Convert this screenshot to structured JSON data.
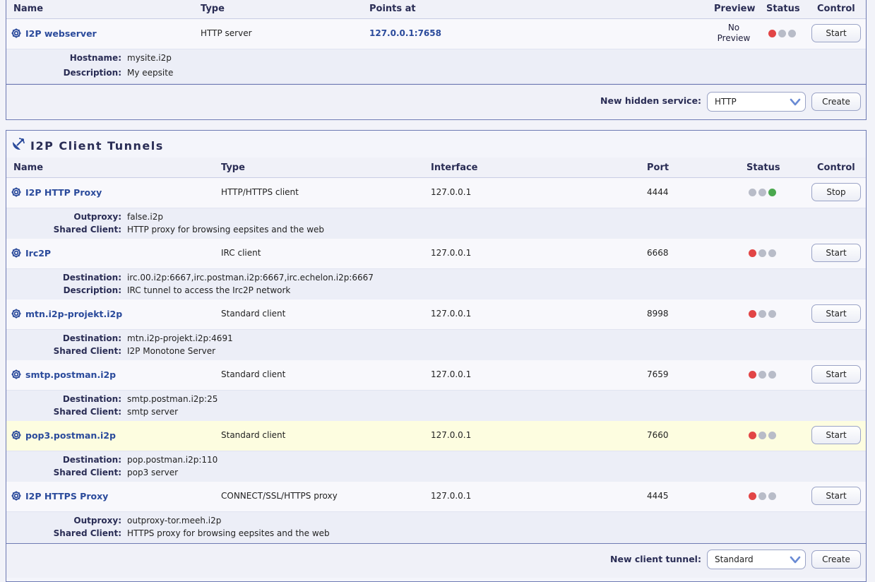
{
  "server_section": {
    "headers": {
      "name": "Name",
      "type": "Type",
      "points_at": "Points at",
      "preview": "Preview",
      "status": "Status",
      "control": "Control"
    },
    "tunnel": {
      "name": "I2P webserver",
      "type": "HTTP server",
      "points_at": "127.0.0.1:7658",
      "preview_line1": "No",
      "preview_line2": "Preview",
      "control": "Start",
      "details": [
        {
          "label": "Hostname:",
          "value": "mysite.i2p"
        },
        {
          "label": "Description:",
          "value": "My eepsite"
        }
      ]
    },
    "footer": {
      "label": "New hidden service:",
      "selected": "HTTP",
      "create": "Create"
    }
  },
  "client_section": {
    "title": "I2P Client Tunnels",
    "headers": {
      "name": "Name",
      "type": "Type",
      "interface": "Interface",
      "port": "Port",
      "status": "Status",
      "control": "Control"
    },
    "tunnels": [
      {
        "name": "I2P HTTP Proxy",
        "type": "HTTP/HTTPS client",
        "interface": "127.0.0.1",
        "port": "4444",
        "control": "Stop",
        "details": [
          {
            "label": "Outproxy:",
            "value": "false.i2p"
          },
          {
            "label": "Shared Client:",
            "value": "HTTP proxy for browsing eepsites and the web"
          }
        ]
      },
      {
        "name": "Irc2P",
        "type": "IRC client",
        "interface": "127.0.0.1",
        "port": "6668",
        "control": "Start",
        "details": [
          {
            "label": "Destination:",
            "value": "irc.00.i2p:6667,irc.postman.i2p:6667,irc.echelon.i2p:6667"
          },
          {
            "label": "Description:",
            "value": "IRC tunnel to access the Irc2P network"
          }
        ]
      },
      {
        "name": "mtn.i2p-projekt.i2p",
        "type": "Standard client",
        "interface": "127.0.0.1",
        "port": "8998",
        "control": "Start",
        "details": [
          {
            "label": "Destination:",
            "value": "mtn.i2p-projekt.i2p:4691"
          },
          {
            "label": "Shared Client:",
            "value": "I2P Monotone Server"
          }
        ]
      },
      {
        "name": "smtp.postman.i2p",
        "type": "Standard client",
        "interface": "127.0.0.1",
        "port": "7659",
        "control": "Start",
        "details": [
          {
            "label": "Destination:",
            "value": "smtp.postman.i2p:25"
          },
          {
            "label": "Shared Client:",
            "value": "smtp server"
          }
        ]
      },
      {
        "name": "pop3.postman.i2p",
        "type": "Standard client",
        "interface": "127.0.0.1",
        "port": "7660",
        "control": "Start",
        "details": [
          {
            "label": "Destination:",
            "value": "pop.postman.i2p:110"
          },
          {
            "label": "Shared Client:",
            "value": "pop3 server"
          }
        ]
      },
      {
        "name": "I2P HTTPS Proxy",
        "type": "CONNECT/SSL/HTTPS proxy",
        "interface": "127.0.0.1",
        "port": "4445",
        "control": "Start",
        "details": [
          {
            "label": "Outproxy:",
            "value": "outproxy-tor.meeh.i2p"
          },
          {
            "label": "Shared Client:",
            "value": "HTTPS proxy for browsing eepsites and the web"
          }
        ]
      }
    ],
    "footer": {
      "label": "New client tunnel:",
      "selected": "Standard",
      "create": "Create"
    }
  },
  "colors": {
    "accent": "#2a4a9b",
    "status_stopped": "#e24546",
    "status_running": "#4aa84e",
    "status_idle": "#b8bcc8",
    "highlight_row": "#fdfde0"
  },
  "icons": {
    "tunnel": "gear-icon",
    "section": "satellite-dish-icon",
    "select": "chevron-down-icon"
  }
}
